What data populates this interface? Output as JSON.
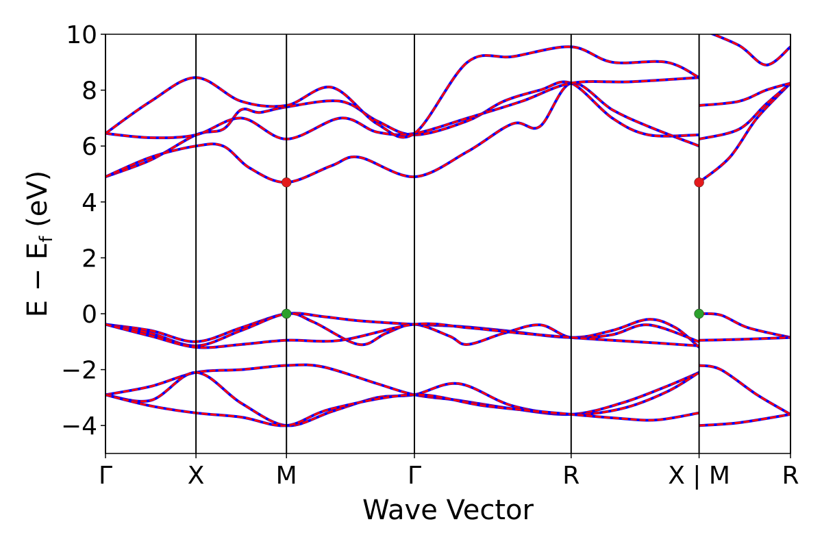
{
  "chart_data": {
    "type": "line",
    "title": "",
    "xlabel": "Wave Vector",
    "ylabel_parts": {
      "main": "E − E",
      "subscript": "f",
      "unit": " (eV)"
    },
    "ylim": [
      -5,
      10
    ],
    "yticks": [
      -4,
      -2,
      0,
      2,
      4,
      6,
      8,
      10
    ],
    "ytick_labels": [
      "−4",
      "−2",
      "0",
      "2",
      "4",
      "6",
      "8",
      "10"
    ],
    "xlim": [
      0,
      7.57
    ],
    "kpoints": [
      {
        "label": "Γ",
        "x": 0.0
      },
      {
        "label": "X",
        "x": 1.0
      },
      {
        "label": "M",
        "x": 2.0
      },
      {
        "label": "Γ",
        "x": 3.414
      },
      {
        "label": "R",
        "x": 5.146
      },
      {
        "label": "X | M",
        "x": 6.56
      },
      {
        "label": "R",
        "x": 7.57
      }
    ],
    "band_break_at_x": 6.56,
    "band_colors": {
      "primary": "#ff0000",
      "overlay": "#0000ff"
    },
    "series": [
      {
        "values": [
          [
            0,
            -0.38
          ],
          [
            0.5,
            -0.6
          ],
          [
            1.0,
            -1.0
          ],
          [
            1.5,
            -0.5
          ],
          [
            2.0,
            0.0
          ],
          [
            2.4,
            -0.1
          ],
          [
            2.8,
            -0.25
          ],
          [
            3.414,
            -0.38
          ],
          [
            3.9,
            -0.45
          ],
          [
            4.4,
            -0.6
          ],
          [
            5.146,
            -0.85
          ],
          [
            5.6,
            -0.6
          ],
          [
            6.0,
            -0.2
          ],
          [
            6.3,
            -0.5
          ],
          [
            6.56,
            -1.2
          ]
        ]
      },
      {
        "values": [
          [
            6.56,
            0.0
          ],
          [
            6.8,
            -0.05
          ],
          [
            7.1,
            -0.5
          ],
          [
            7.57,
            -0.85
          ]
        ]
      },
      {
        "values": [
          [
            0,
            -0.38
          ],
          [
            0.5,
            -0.7
          ],
          [
            1.0,
            -1.15
          ],
          [
            1.5,
            -0.6
          ],
          [
            2.0,
            0.0
          ],
          [
            2.3,
            -0.3
          ],
          [
            2.8,
            -1.1
          ],
          [
            3.1,
            -0.7
          ],
          [
            3.414,
            -0.38
          ],
          [
            3.8,
            -0.8
          ],
          [
            4.0,
            -1.1
          ],
          [
            4.4,
            -0.7
          ],
          [
            4.8,
            -0.4
          ],
          [
            5.146,
            -0.85
          ],
          [
            5.6,
            -0.75
          ],
          [
            6.0,
            -0.4
          ],
          [
            6.56,
            -1.0
          ]
        ]
      },
      {
        "values": [
          [
            6.56,
            -0.95
          ],
          [
            7.0,
            -0.92
          ],
          [
            7.57,
            -0.85
          ]
        ]
      },
      {
        "values": [
          [
            0,
            -0.38
          ],
          [
            0.5,
            -0.8
          ],
          [
            1.0,
            -1.2
          ],
          [
            1.5,
            -1.1
          ],
          [
            2.0,
            -0.95
          ],
          [
            2.6,
            -0.95
          ],
          [
            3.414,
            -0.38
          ],
          [
            4.0,
            -0.5
          ],
          [
            4.6,
            -0.7
          ],
          [
            5.146,
            -0.85
          ],
          [
            5.6,
            -0.95
          ],
          [
            6.1,
            -1.05
          ],
          [
            6.56,
            -1.15
          ]
        ]
      },
      {
        "values": [
          [
            0,
            -2.9
          ],
          [
            0.5,
            -2.6
          ],
          [
            1.0,
            -2.1
          ],
          [
            1.5,
            -2.0
          ],
          [
            2.0,
            -1.85
          ],
          [
            2.4,
            -1.9
          ],
          [
            3.0,
            -2.5
          ],
          [
            3.414,
            -2.9
          ],
          [
            3.9,
            -3.1
          ],
          [
            4.5,
            -3.4
          ],
          [
            5.146,
            -3.6
          ],
          [
            5.7,
            -3.2
          ],
          [
            6.2,
            -2.6
          ],
          [
            6.56,
            -2.1
          ]
        ]
      },
      {
        "values": [
          [
            6.56,
            -1.85
          ],
          [
            6.8,
            -2.0
          ],
          [
            7.2,
            -2.9
          ],
          [
            7.57,
            -3.6
          ]
        ]
      },
      {
        "values": [
          [
            0,
            -2.9
          ],
          [
            0.5,
            -3.1
          ],
          [
            1.0,
            -2.1
          ],
          [
            1.5,
            -3.2
          ],
          [
            2.0,
            -4.0
          ],
          [
            2.5,
            -3.5
          ],
          [
            3.0,
            -3.0
          ],
          [
            3.414,
            -2.9
          ],
          [
            3.9,
            -2.5
          ],
          [
            4.5,
            -3.3
          ],
          [
            5.146,
            -3.6
          ],
          [
            5.7,
            -3.4
          ],
          [
            6.2,
            -2.8
          ],
          [
            6.56,
            -2.1
          ]
        ]
      },
      {
        "values": [
          [
            0,
            -2.9
          ],
          [
            0.5,
            -3.3
          ],
          [
            1.0,
            -3.55
          ],
          [
            1.5,
            -3.7
          ],
          [
            2.0,
            -4.0
          ],
          [
            2.5,
            -3.4
          ],
          [
            3.414,
            -2.9
          ],
          [
            4.2,
            -3.3
          ],
          [
            5.146,
            -3.6
          ],
          [
            5.7,
            -3.75
          ],
          [
            6.1,
            -3.8
          ],
          [
            6.56,
            -3.55
          ]
        ]
      },
      {
        "values": [
          [
            6.56,
            -4.0
          ],
          [
            7.0,
            -3.9
          ],
          [
            7.57,
            -3.6
          ]
        ]
      },
      {
        "values": [
          [
            0,
            4.9
          ],
          [
            0.5,
            5.5
          ],
          [
            1.0,
            6.4
          ],
          [
            1.3,
            6.6
          ],
          [
            1.5,
            7.3
          ],
          [
            1.7,
            7.2
          ],
          [
            2.0,
            7.4
          ],
          [
            2.6,
            7.6
          ],
          [
            3.0,
            6.9
          ],
          [
            3.414,
            6.4
          ],
          [
            4.0,
            6.9
          ],
          [
            4.4,
            7.6
          ],
          [
            4.8,
            8.0
          ],
          [
            5.146,
            8.25
          ],
          [
            5.6,
            7.0
          ],
          [
            6.0,
            6.4
          ],
          [
            6.56,
            6.4
          ]
        ]
      },
      {
        "values": [
          [
            0,
            4.9
          ],
          [
            0.5,
            5.6
          ],
          [
            1.0,
            6.0
          ],
          [
            1.3,
            6.0
          ],
          [
            1.6,
            5.2
          ],
          [
            2.0,
            4.7
          ],
          [
            2.5,
            5.3
          ],
          [
            2.8,
            5.6
          ],
          [
            3.414,
            4.9
          ],
          [
            4.0,
            5.8
          ],
          [
            4.5,
            6.8
          ],
          [
            4.8,
            6.7
          ],
          [
            5.146,
            8.25
          ],
          [
            5.6,
            7.3
          ],
          [
            6.0,
            6.7
          ],
          [
            6.56,
            6.0
          ]
        ]
      },
      {
        "values": [
          [
            0,
            6.45
          ],
          [
            0.5,
            6.3
          ],
          [
            1.0,
            6.4
          ],
          [
            1.5,
            7.0
          ],
          [
            2.0,
            6.25
          ],
          [
            2.6,
            7.0
          ],
          [
            3.0,
            6.5
          ],
          [
            3.414,
            6.45
          ],
          [
            4.0,
            7.0
          ],
          [
            4.6,
            7.6
          ],
          [
            5.146,
            8.25
          ],
          [
            5.8,
            8.3
          ],
          [
            6.56,
            8.45
          ]
        ]
      },
      {
        "values": [
          [
            0,
            6.45
          ],
          [
            0.5,
            7.6
          ],
          [
            1.0,
            8.45
          ],
          [
            1.5,
            7.6
          ],
          [
            2.0,
            7.45
          ],
          [
            2.5,
            8.1
          ],
          [
            3.0,
            6.8
          ],
          [
            3.414,
            6.45
          ],
          [
            4.0,
            9.0
          ],
          [
            4.5,
            9.2
          ],
          [
            5.146,
            9.55
          ],
          [
            5.6,
            9.0
          ],
          [
            6.2,
            9.0
          ],
          [
            6.56,
            8.45
          ]
        ]
      },
      {
        "values": [
          [
            6.56,
            4.7
          ],
          [
            6.9,
            5.6
          ],
          [
            7.2,
            7.0
          ],
          [
            7.57,
            8.25
          ]
        ]
      },
      {
        "values": [
          [
            6.56,
            6.25
          ],
          [
            7.0,
            6.6
          ],
          [
            7.3,
            7.5
          ],
          [
            7.57,
            8.25
          ]
        ]
      },
      {
        "values": [
          [
            6.56,
            7.45
          ],
          [
            7.0,
            7.6
          ],
          [
            7.3,
            8.0
          ],
          [
            7.57,
            8.25
          ]
        ]
      },
      {
        "values": [
          [
            6.56,
            10.2
          ],
          [
            7.0,
            9.6
          ],
          [
            7.3,
            8.9
          ],
          [
            7.57,
            9.55
          ]
        ]
      }
    ],
    "markers": [
      {
        "x": 2.0,
        "y": 4.7,
        "color": "#e31a1c"
      },
      {
        "x": 6.56,
        "y": 4.7,
        "color": "#e31a1c"
      },
      {
        "x": 2.0,
        "y": 0.0,
        "color": "#2ca02c"
      },
      {
        "x": 6.56,
        "y": 0.0,
        "color": "#2ca02c"
      }
    ],
    "grid": false,
    "legend": "none"
  }
}
